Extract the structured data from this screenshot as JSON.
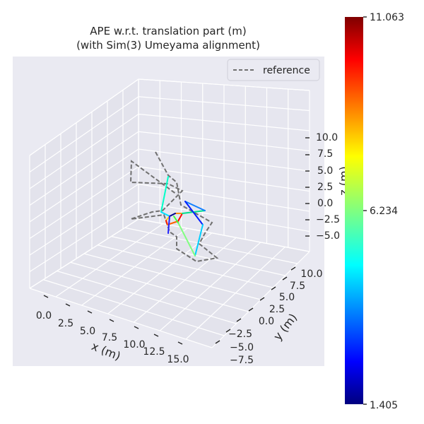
{
  "chart_data": {
    "type": "line",
    "title_line1": "APE w.r.t. translation part (m)",
    "title_line2": "(with Sim(3) Umeyama alignment)",
    "xlabel": "x (m)",
    "ylabel": "y (m)",
    "zlabel": "z (m)",
    "legend": {
      "entries": [
        "reference"
      ],
      "placement": "top-right"
    },
    "x_ticks": [
      "0.0",
      "2.5",
      "5.0",
      "7.5",
      "10.0",
      "12.5",
      "15.0"
    ],
    "y_ticks": [
      "−7.5",
      "−5.0",
      "−2.5",
      "0.0",
      "2.5",
      "5.0",
      "7.5",
      "10.0"
    ],
    "z_ticks": [
      "−5.0",
      "−2.5",
      "0.0",
      "2.5",
      "5.0",
      "7.5",
      "10.0"
    ],
    "colorbar": {
      "min": "1.405",
      "mid": "6.234",
      "max": "11.063",
      "colormap": "jet"
    },
    "grid": true,
    "reference_color": "#707070",
    "pane_color": "#eaeaf2",
    "reference_path": [
      [
        220,
        215
      ],
      [
        238,
        248
      ],
      [
        250,
        258
      ],
      [
        256,
        290
      ],
      [
        300,
        315
      ],
      [
        290,
        330
      ],
      [
        282,
        345
      ],
      [
        307,
        365
      ],
      [
        278,
        370
      ],
      [
        250,
        352
      ],
      [
        250,
        335
      ],
      [
        240,
        328
      ],
      [
        232,
        304
      ],
      [
        185,
        310
      ],
      [
        215,
        300
      ],
      [
        230,
        298
      ],
      [
        258,
        270
      ],
      [
        238,
        260
      ],
      [
        185,
        258
      ],
      [
        186,
        228
      ],
      [
        250,
        275
      ]
    ],
    "estimate_segments": [
      {
        "p": [
          [
            238,
            250
          ],
          [
            228,
            300
          ]
        ],
        "color": "#00ffc8"
      },
      {
        "p": [
          [
            228,
            300
          ],
          [
            240,
            306
          ]
        ],
        "color": "#00e0ff"
      },
      {
        "p": [
          [
            240,
            306
          ],
          [
            235,
            312
          ]
        ],
        "color": "#ffd000"
      },
      {
        "p": [
          [
            235,
            312
          ],
          [
            237,
            318
          ]
        ],
        "color": "#ff2000"
      },
      {
        "p": [
          [
            237,
            318
          ],
          [
            252,
            313
          ]
        ],
        "color": "#ff6000"
      },
      {
        "p": [
          [
            252,
            313
          ],
          [
            258,
            302
          ]
        ],
        "color": "#ff0000"
      },
      {
        "p": [
          [
            258,
            302
          ],
          [
            248,
            302
          ]
        ],
        "color": "#ff9000"
      },
      {
        "p": [
          [
            248,
            302
          ],
          [
            240,
            306
          ]
        ],
        "color": "#000090"
      },
      {
        "p": [
          [
            240,
            306
          ],
          [
            238,
            330
          ]
        ],
        "color": "#2020ff"
      },
      {
        "p": [
          [
            258,
            302
          ],
          [
            290,
            298
          ]
        ],
        "color": "#00e090"
      },
      {
        "p": [
          [
            290,
            298
          ],
          [
            262,
            285
          ]
        ],
        "color": "#1080ff"
      },
      {
        "p": [
          [
            262,
            285
          ],
          [
            287,
            318
          ]
        ],
        "color": "#0020ff"
      },
      {
        "p": [
          [
            287,
            318
          ],
          [
            276,
            362
          ]
        ],
        "color": "#00d0ff"
      },
      {
        "p": [
          [
            276,
            362
          ],
          [
            252,
            315
          ]
        ],
        "color": "#80ff80"
      },
      {
        "p": [
          [
            252,
            315
          ],
          [
            246,
            306
          ]
        ],
        "color": "#40ff40"
      }
    ]
  }
}
